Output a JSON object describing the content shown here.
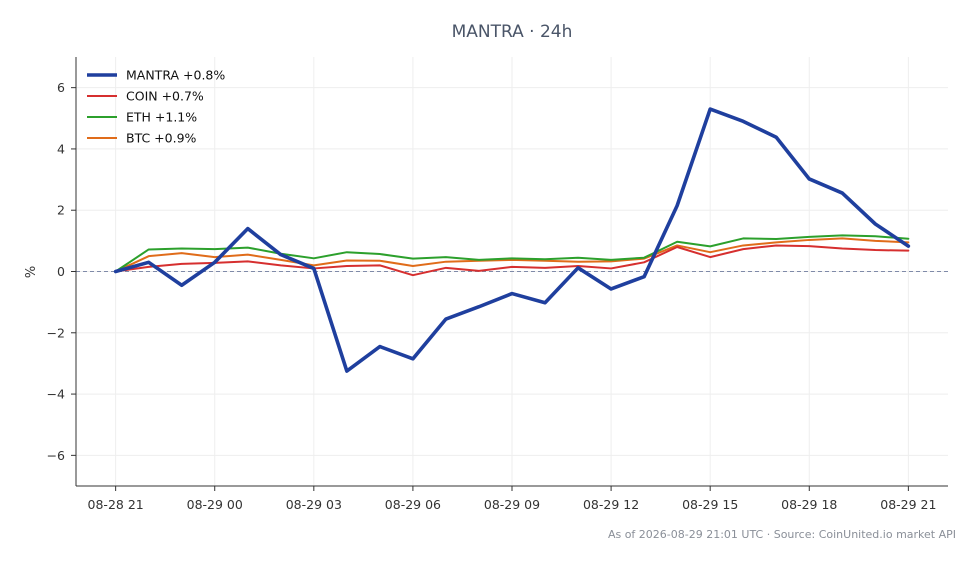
{
  "chart_data": {
    "type": "line",
    "title": "MANTRA · 24h",
    "xlabel": "",
    "ylabel": "%",
    "ylim": [
      -7,
      7
    ],
    "yticks": [
      -6,
      -4,
      -2,
      0,
      2,
      4,
      6
    ],
    "ytick_labels": [
      "−6",
      "−4",
      "−2",
      "0",
      "2",
      "4",
      "6"
    ],
    "xlim": [
      "2026-08-28 19:48",
      "2026-08-29 22:12"
    ],
    "xticks": [
      "2026-08-28 21:00",
      "2026-08-29 00:00",
      "2026-08-29 03:00",
      "2026-08-29 06:00",
      "2026-08-29 09:00",
      "2026-08-29 12:00",
      "2026-08-29 15:00",
      "2026-08-29 18:00",
      "2026-08-29 21:00"
    ],
    "xtick_labels": [
      "08-28 21",
      "08-29 00",
      "08-29 03",
      "08-29 06",
      "08-29 09",
      "08-29 12",
      "08-29 15",
      "08-29 18",
      "08-29 21"
    ],
    "x": [
      "2026-08-28 21:00",
      "2026-08-28 22:00",
      "2026-08-28 23:00",
      "2026-08-29 00:00",
      "2026-08-29 01:00",
      "2026-08-29 02:00",
      "2026-08-29 03:00",
      "2026-08-29 04:00",
      "2026-08-29 05:00",
      "2026-08-29 06:00",
      "2026-08-29 07:00",
      "2026-08-29 08:00",
      "2026-08-29 09:00",
      "2026-08-29 10:00",
      "2026-08-29 11:00",
      "2026-08-29 12:00",
      "2026-08-29 13:00",
      "2026-08-29 14:00",
      "2026-08-29 15:00",
      "2026-08-29 16:00",
      "2026-08-29 17:00",
      "2026-08-29 18:00",
      "2026-08-29 19:00",
      "2026-08-29 20:00",
      "2026-08-29 21:00"
    ],
    "series": [
      {
        "name": "MANTRA +0.8%",
        "color": "#1f3f9e",
        "line_width": "thick",
        "values": [
          0.0,
          0.3,
          -0.45,
          0.3,
          1.4,
          0.55,
          0.1,
          -3.25,
          -2.45,
          -2.85,
          -1.55,
          -1.15,
          -0.72,
          -1.02,
          0.12,
          -0.57,
          -0.17,
          2.15,
          5.3,
          4.9,
          4.38,
          3.02,
          2.56,
          1.55,
          0.83
        ]
      },
      {
        "name": "COIN +0.7%",
        "color": "#d62f2f",
        "line_width": "normal",
        "values": [
          0.0,
          0.15,
          0.25,
          0.28,
          0.33,
          0.2,
          0.1,
          0.18,
          0.2,
          -0.12,
          0.12,
          0.02,
          0.15,
          0.12,
          0.18,
          0.1,
          0.3,
          0.8,
          0.47,
          0.73,
          0.85,
          0.83,
          0.75,
          0.7,
          0.68
        ]
      },
      {
        "name": "ETH +1.1%",
        "color": "#2ca02c",
        "line_width": "normal",
        "values": [
          0.0,
          0.72,
          0.75,
          0.73,
          0.78,
          0.58,
          0.43,
          0.63,
          0.57,
          0.42,
          0.47,
          0.38,
          0.43,
          0.4,
          0.45,
          0.38,
          0.45,
          0.97,
          0.82,
          1.08,
          1.06,
          1.13,
          1.18,
          1.15,
          1.07
        ]
      },
      {
        "name": "BTC +0.9%",
        "color": "#e06c1a",
        "line_width": "normal",
        "values": [
          0.0,
          0.5,
          0.6,
          0.47,
          0.55,
          0.38,
          0.2,
          0.36,
          0.35,
          0.18,
          0.32,
          0.35,
          0.38,
          0.35,
          0.32,
          0.33,
          0.42,
          0.85,
          0.63,
          0.85,
          0.95,
          1.03,
          1.08,
          1.0,
          0.95
        ]
      }
    ],
    "baseline": {
      "y": 0,
      "style": "dashed",
      "color": "#7f8aa8"
    },
    "grid": true,
    "legend_position": "top-left",
    "footnote": "As of 2026-08-29 21:01 UTC · Source: CoinUnited.io market API"
  },
  "colors": {
    "title": "#4a5568",
    "grid": "#eeeeee",
    "axis": "#333333",
    "footnote": "#8a8f98"
  }
}
